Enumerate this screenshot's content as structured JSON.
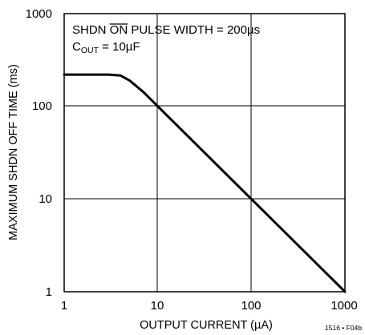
{
  "chart_data": {
    "type": "line",
    "xscale": "log",
    "yscale": "log",
    "xlim": [
      1,
      1000
    ],
    "ylim": [
      1,
      1000
    ],
    "grid": true,
    "xlabel": "OUTPUT CURRENT (µA)",
    "ylabel": "MAXIMUM SHDN OFF TIME (ms)",
    "x_ticks": [
      "1",
      "10",
      "100",
      "1000"
    ],
    "y_ticks": [
      "1",
      "10",
      "100",
      "1000"
    ],
    "annotations": {
      "line1_pre": "SHDN ",
      "line1_on": "ON",
      "line1_post": " PULSE WIDTH = 200µs",
      "line2_c": "C",
      "line2_sub": "OUT",
      "line2_post": " = 10µF"
    },
    "figure_id": "1516 • F04b",
    "series": [
      {
        "x": [
          1,
          2,
          3,
          4,
          5,
          7,
          10,
          20,
          50,
          100,
          200,
          500,
          1000
        ],
        "y": [
          220,
          220,
          220,
          215,
          190,
          143,
          100,
          50,
          20,
          10,
          5,
          2,
          1
        ]
      }
    ]
  }
}
